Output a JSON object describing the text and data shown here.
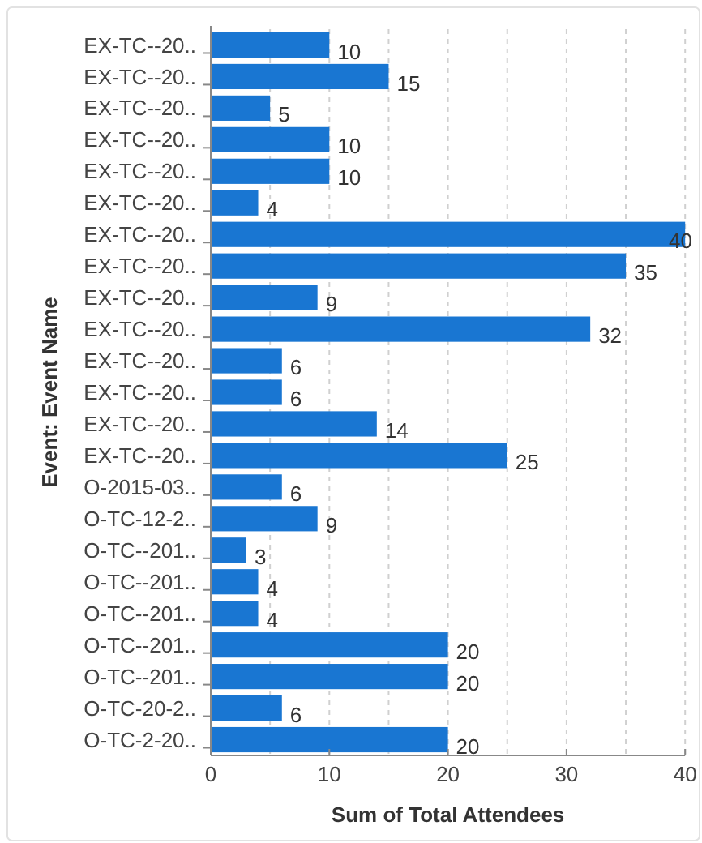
{
  "chart_data": {
    "type": "bar",
    "orientation": "horizontal",
    "categories": [
      "EX-TC--20..",
      "EX-TC--20..",
      "EX-TC--20..",
      "EX-TC--20..",
      "EX-TC--20..",
      "EX-TC--20..",
      "EX-TC--20..",
      "EX-TC--20..",
      "EX-TC--20..",
      "EX-TC--20..",
      "EX-TC--20..",
      "EX-TC--20..",
      "EX-TC--20..",
      "EX-TC--20..",
      "O-2015-03..",
      "O-TC-12-2..",
      "O-TC--201..",
      "O-TC--201..",
      "O-TC--201..",
      "O-TC--201..",
      "O-TC--201..",
      "O-TC-20-2..",
      "O-TC-2-20.."
    ],
    "values": [
      10,
      15,
      5,
      10,
      10,
      4,
      40,
      35,
      9,
      32,
      6,
      6,
      14,
      25,
      6,
      9,
      3,
      4,
      4,
      20,
      20,
      6,
      20
    ],
    "color": "#1976d2",
    "xlabel": "Sum of Total Attendees",
    "ylabel": "Event: Event Name",
    "xlim": [
      0,
      40
    ],
    "xticks": [
      0,
      {
        "value": 5,
        "label": null
      },
      10,
      {
        "value": 15,
        "label": null
      },
      20,
      {
        "value": 25,
        "label": null
      },
      30,
      {
        "value": 35,
        "label": null
      },
      40
    ],
    "grid": "x",
    "data_labels": true
  }
}
